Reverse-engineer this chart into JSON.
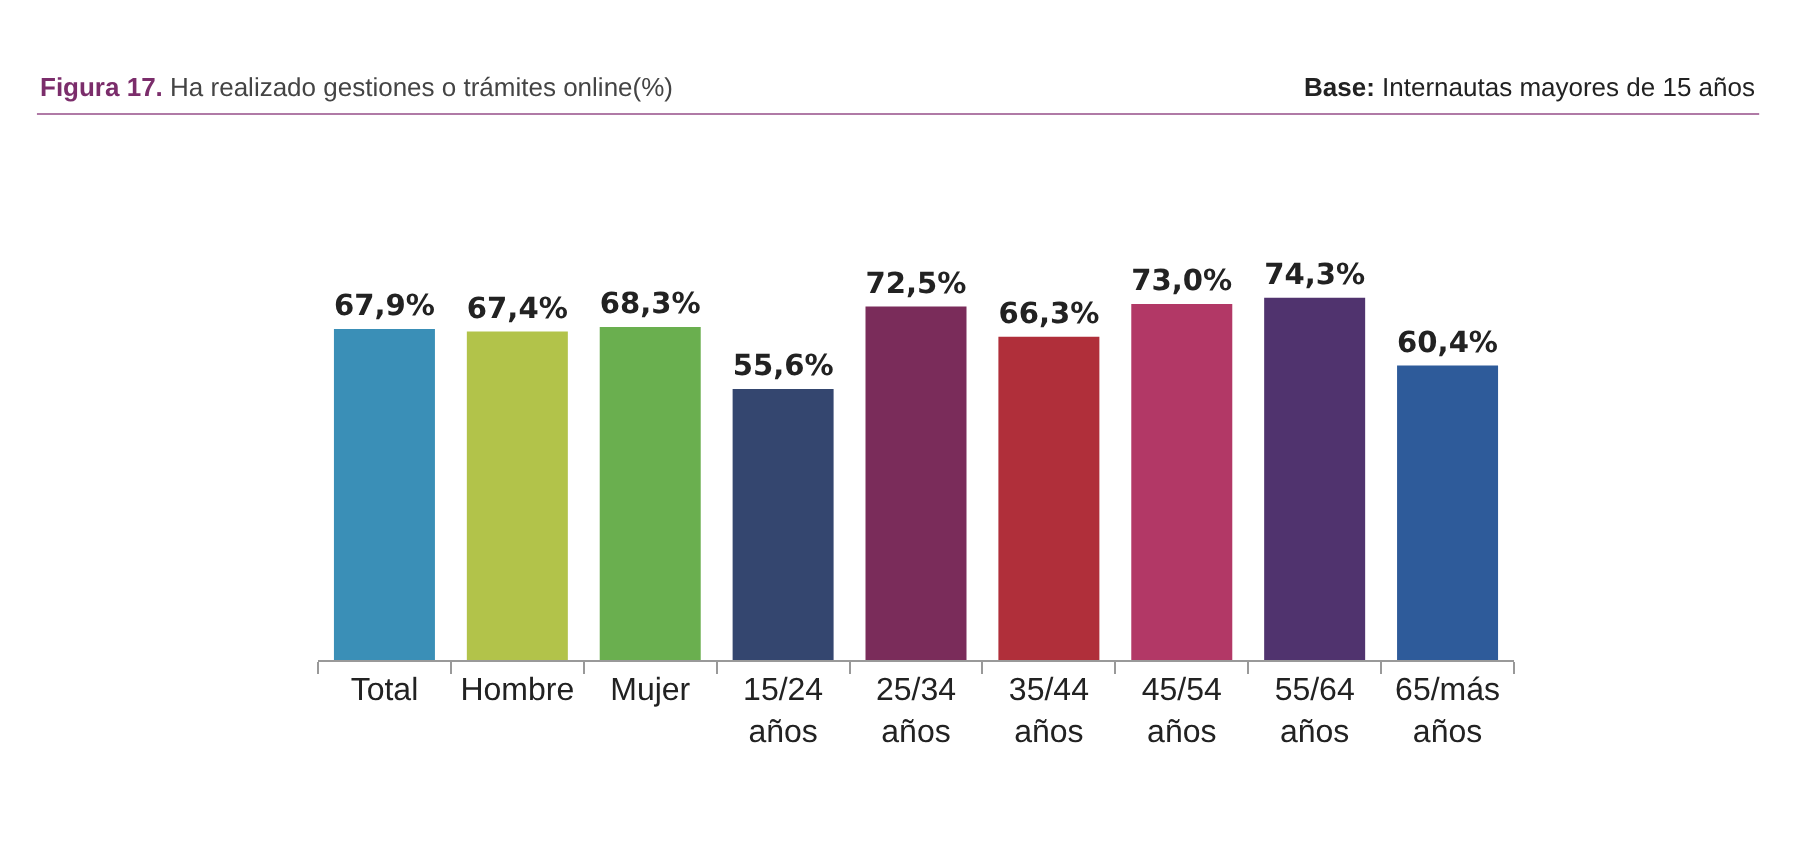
{
  "chart_data": {
    "type": "bar",
    "title": "Figura 17. Ha realizado gestiones o trámites online(%)",
    "subtitle": "Base: Internautas mayores de 15 años",
    "categories": [
      "Total",
      "Hombre",
      "Mujer",
      "15/24 años",
      "25/34 años",
      "35/44 años",
      "45/54 años",
      "55/64 años",
      "65/más años"
    ],
    "values": [
      67.9,
      67.4,
      68.3,
      55.6,
      72.5,
      66.3,
      73.0,
      74.3,
      60.4
    ],
    "colors": [
      "#3a8fb7",
      "#b2c34a",
      "#6aaf4f",
      "#34466f",
      "#7a2c5a",
      "#b02f3a",
      "#b23866",
      "#50336e",
      "#2e5b9a"
    ],
    "value_labels": [
      "67,9%",
      "67,4%",
      "68,3%",
      "55,6%",
      "72,5%",
      "66,3%",
      "73,0%",
      "74,3%",
      "60,4%"
    ]
  }
}
